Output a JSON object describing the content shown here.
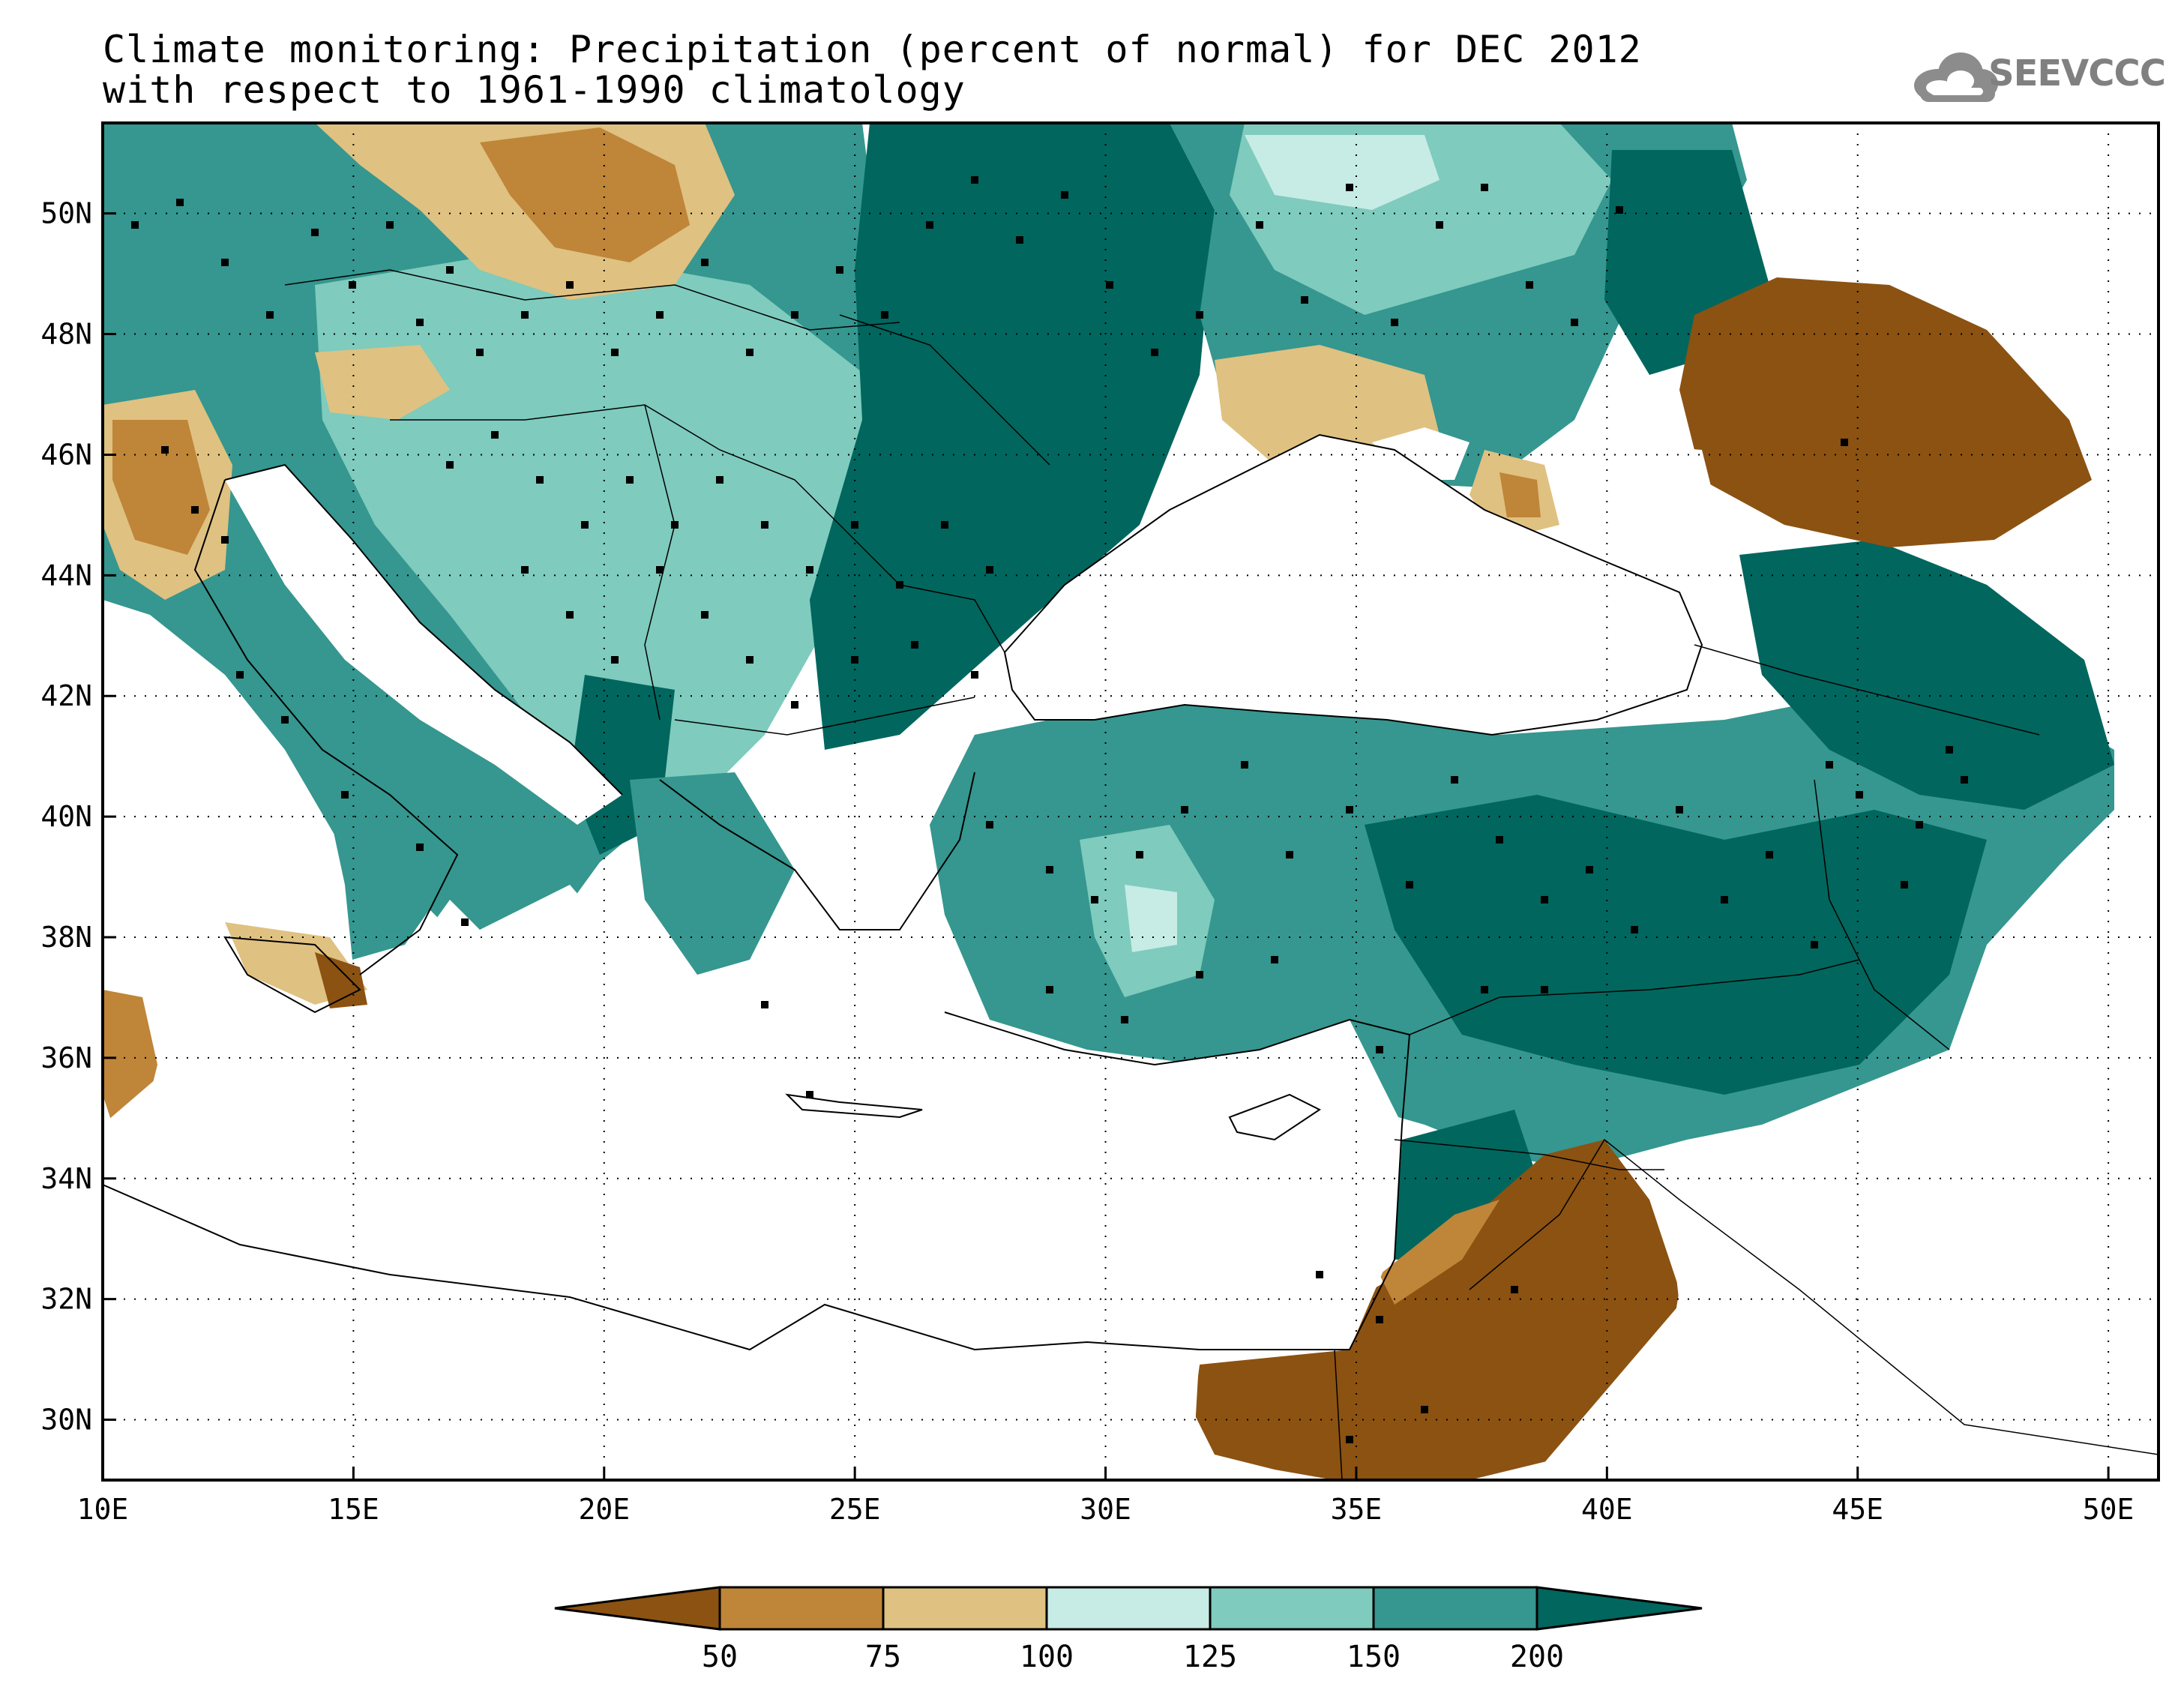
{
  "title": {
    "line1": "Climate monitoring: Precipitation (percent of normal) for DEC 2012",
    "line2": "with respect to 1961-1990 climatology"
  },
  "logo": {
    "text": "SEEVCCC",
    "icon": "cloud-icon"
  },
  "axes": {
    "x_ticks": [
      "10E",
      "15E",
      "20E",
      "25E",
      "30E",
      "35E",
      "40E",
      "45E",
      "50E"
    ],
    "y_ticks": [
      "50N",
      "48N",
      "46N",
      "44N",
      "42N",
      "40N",
      "38N",
      "36N",
      "34N",
      "32N",
      "30N"
    ],
    "lon_range": [
      10,
      51
    ],
    "lat_range": [
      29,
      51.5
    ],
    "grid": true
  },
  "colorbar": {
    "labels": [
      "50",
      "75",
      "100",
      "125",
      "150",
      "200"
    ],
    "colors": [
      "#8b5212",
      "#bf8538",
      "#dfc181",
      "#c7ebe5",
      "#7fcbbd",
      "#35978f",
      "#01665e"
    ],
    "extend": "both"
  },
  "chart_data": {
    "type": "heatmap",
    "title": "Climate monitoring: Precipitation (percent of normal) for DEC 2012",
    "subtitle": "with respect to 1961-1990 climatology",
    "levels": [
      50,
      75,
      100,
      125,
      150,
      200
    ],
    "xlim": [
      10,
      51
    ],
    "ylim": [
      29,
      51.5
    ]
  }
}
